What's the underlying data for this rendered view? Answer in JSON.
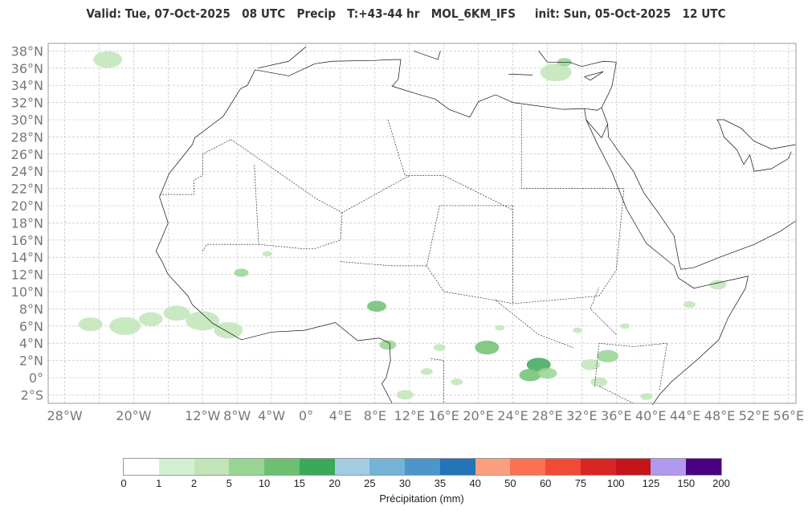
{
  "title": "Valid: Tue, 07-Oct-2025   08 UTC   Precip   T:+43-44 hr   MOL_6KM_IFS     init: Sun, 05-Oct-2025   12 UTC",
  "map": {
    "lon_range": [
      -30,
      56.8
    ],
    "lat_range": [
      -3.1,
      38.8
    ],
    "lon_ticks": [
      {
        "v": -28,
        "l": "28°W"
      },
      {
        "v": -20,
        "l": "20°W"
      },
      {
        "v": -12,
        "l": "12°W"
      },
      {
        "v": -8,
        "l": "8°W"
      },
      {
        "v": -4,
        "l": "4°W"
      },
      {
        "v": 0,
        "l": "0°"
      },
      {
        "v": 4,
        "l": "4°E"
      },
      {
        "v": 8,
        "l": "8°E"
      },
      {
        "v": 12,
        "l": "12°E"
      },
      {
        "v": 16,
        "l": "16°E"
      },
      {
        "v": 20,
        "l": "20°E"
      },
      {
        "v": 24,
        "l": "24°E"
      },
      {
        "v": 28,
        "l": "28°E"
      },
      {
        "v": 32,
        "l": "32°E"
      },
      {
        "v": 36,
        "l": "36°E"
      },
      {
        "v": 40,
        "l": "40°E"
      },
      {
        "v": 44,
        "l": "44°E"
      },
      {
        "v": 48,
        "l": "48°E"
      },
      {
        "v": 52,
        "l": "52°E"
      },
      {
        "v": 56,
        "l": "56°E"
      }
    ],
    "lat_ticks": [
      {
        "v": 38,
        "l": "38°N"
      },
      {
        "v": 36,
        "l": "36°N"
      },
      {
        "v": 34,
        "l": "34°N"
      },
      {
        "v": 32,
        "l": "32°N"
      },
      {
        "v": 30,
        "l": "30°N"
      },
      {
        "v": 28,
        "l": "28°N"
      },
      {
        "v": 26,
        "l": "26°N"
      },
      {
        "v": 24,
        "l": "24°N"
      },
      {
        "v": 22,
        "l": "22°N"
      },
      {
        "v": 20,
        "l": "20°N"
      },
      {
        "v": 18,
        "l": "18°N"
      },
      {
        "v": 16,
        "l": "16°N"
      },
      {
        "v": 14,
        "l": "14°N"
      },
      {
        "v": 12,
        "l": "12°N"
      },
      {
        "v": 10,
        "l": "10°N"
      },
      {
        "v": 8,
        "l": "8°N"
      },
      {
        "v": 6,
        "l": "6°N"
      },
      {
        "v": 4,
        "l": "4°N"
      },
      {
        "v": 2,
        "l": "2°N"
      },
      {
        "v": 0,
        "l": "0°"
      },
      {
        "v": -2,
        "l": "2°S"
      }
    ],
    "precip_cells": [
      {
        "lon": -23,
        "lat": 37,
        "mm": 2,
        "r": 1.2
      },
      {
        "lon": 29,
        "lat": 35.5,
        "mm": 3,
        "r": 1.3
      },
      {
        "lon": 30,
        "lat": 36.7,
        "mm": 5,
        "r": 0.6
      },
      {
        "lon": -25,
        "lat": 6.2,
        "mm": 3,
        "r": 1.0
      },
      {
        "lon": -21,
        "lat": 6.0,
        "mm": 2,
        "r": 1.3
      },
      {
        "lon": -18,
        "lat": 6.8,
        "mm": 4,
        "r": 1.0
      },
      {
        "lon": -15,
        "lat": 7.5,
        "mm": 3,
        "r": 1.1
      },
      {
        "lon": -12,
        "lat": 6.6,
        "mm": 2,
        "r": 1.4
      },
      {
        "lon": -9,
        "lat": 5.5,
        "mm": 2,
        "r": 1.2
      },
      {
        "lon": -7.5,
        "lat": 12.2,
        "mm": 5,
        "r": 0.6
      },
      {
        "lon": -4.5,
        "lat": 14.4,
        "mm": 3,
        "r": 0.4
      },
      {
        "lon": 8.2,
        "lat": 8.3,
        "mm": 10,
        "r": 0.8
      },
      {
        "lon": 9.5,
        "lat": 3.8,
        "mm": 5,
        "r": 0.7
      },
      {
        "lon": 15.5,
        "lat": 3.5,
        "mm": 3,
        "r": 0.5
      },
      {
        "lon": 14,
        "lat": 0.7,
        "mm": 2,
        "r": 0.5
      },
      {
        "lon": 17.5,
        "lat": -0.5,
        "mm": 3,
        "r": 0.5
      },
      {
        "lon": 21,
        "lat": 3.5,
        "mm": 10,
        "r": 1.0
      },
      {
        "lon": 22.5,
        "lat": 5.8,
        "mm": 3,
        "r": 0.4
      },
      {
        "lon": 27,
        "lat": 1.5,
        "mm": 15,
        "r": 1.0
      },
      {
        "lon": 26,
        "lat": 0.3,
        "mm": 10,
        "r": 0.9
      },
      {
        "lon": 28,
        "lat": 0.5,
        "mm": 5,
        "r": 0.8
      },
      {
        "lon": 31.5,
        "lat": 5.5,
        "mm": 3,
        "r": 0.4
      },
      {
        "lon": 33,
        "lat": 1.5,
        "mm": 3,
        "r": 0.8
      },
      {
        "lon": 35,
        "lat": 2.5,
        "mm": 5,
        "r": 0.9
      },
      {
        "lon": 34,
        "lat": -0.5,
        "mm": 2,
        "r": 0.7
      },
      {
        "lon": 37,
        "lat": 6,
        "mm": 2,
        "r": 0.4
      },
      {
        "lon": 44.5,
        "lat": 8.5,
        "mm": 2,
        "r": 0.5
      },
      {
        "lon": 47.8,
        "lat": 10.8,
        "mm": 3,
        "r": 0.7
      },
      {
        "lon": 11.5,
        "lat": -2,
        "mm": 2,
        "r": 0.7
      },
      {
        "lon": 39.5,
        "lat": -2.2,
        "mm": 2,
        "r": 0.5
      }
    ]
  },
  "colorbar": {
    "title": "Précipitation (mm)",
    "labels": [
      "0",
      "1",
      "2",
      "5",
      "10",
      "15",
      "20",
      "25",
      "30",
      "35",
      "40",
      "50",
      "60",
      "75",
      "100",
      "125",
      "150",
      "200"
    ],
    "bounds": [
      0,
      1,
      2,
      5,
      10,
      15,
      20,
      25,
      30,
      35,
      40,
      50,
      60,
      75,
      100,
      125,
      150,
      200
    ],
    "colors": [
      "#ffffff",
      "#d2efd3",
      "#c1e5b9",
      "#98d594",
      "#6ec071",
      "#3ca85a",
      "#a4cce3",
      "#75b2d8",
      "#4b97c9",
      "#2474b7",
      "#fc9f81",
      "#fb7151",
      "#f34a36",
      "#d92523",
      "#c5151a",
      "#b09aee",
      "#4b0083"
    ]
  }
}
